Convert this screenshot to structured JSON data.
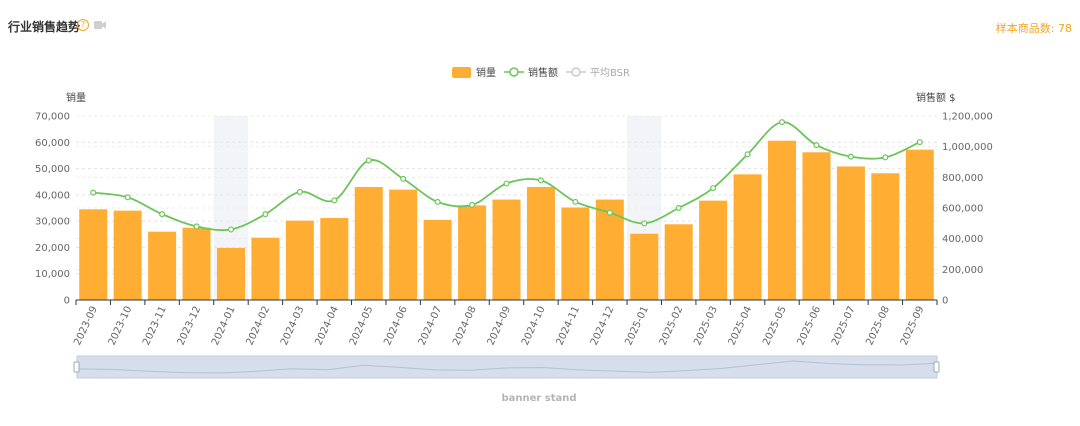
{
  "header": {
    "title": "行业销售趋势",
    "help_symbol": "?",
    "sample_label": "样本商品数: 78"
  },
  "footer": {
    "label": "banner stand"
  },
  "colors": {
    "bar": "#FFAD33",
    "line": "#6CC55A",
    "bsr": "#CCCCCC",
    "highlight": "#F2F4F8",
    "accent": "#F5A623",
    "slider": "#D5DEEA"
  },
  "chart_data": {
    "type": "bar",
    "title": "行业销售趋势",
    "legend": [
      {
        "name": "销量",
        "kind": "bar",
        "active": true
      },
      {
        "name": "销售额",
        "kind": "line",
        "active": true
      },
      {
        "name": "平均BSR",
        "kind": "line",
        "active": false
      }
    ],
    "legend_position": "top-center",
    "categories": [
      "2023-09",
      "2023-10",
      "2023-11",
      "2023-12",
      "2024-01",
      "2024-02",
      "2024-03",
      "2024-04",
      "2024-05",
      "2024-06",
      "2024-07",
      "2024-08",
      "2024-09",
      "2024-10",
      "2024-11",
      "2024-12",
      "2025-01",
      "2025-02",
      "2025-03",
      "2025-04",
      "2025-05",
      "2025-06",
      "2025-07",
      "2025-08",
      "2025-09"
    ],
    "highlight_categories": [
      "2024-01",
      "2025-01"
    ],
    "series": [
      {
        "name": "销量",
        "axis": "left",
        "type": "bar",
        "values": [
          34500,
          34000,
          26000,
          27500,
          19800,
          23700,
          30200,
          31200,
          43000,
          42000,
          30500,
          36000,
          38200,
          43000,
          35200,
          38200,
          25200,
          28800,
          37800,
          47800,
          60600,
          56200,
          50800,
          48200,
          57200
        ]
      },
      {
        "name": "销售额",
        "axis": "right",
        "type": "line",
        "values": [
          700000,
          670000,
          560000,
          480000,
          460000,
          560000,
          705000,
          650000,
          910000,
          790000,
          640000,
          620000,
          760000,
          780000,
          640000,
          570000,
          500000,
          600000,
          730000,
          950000,
          1160000,
          1010000,
          935000,
          930000,
          1030000
        ]
      }
    ],
    "y_left": {
      "label": "销量",
      "min": 0,
      "max": 70000,
      "ticks": [
        "0",
        "10,000",
        "20,000",
        "30,000",
        "40,000",
        "50,000",
        "60,000",
        "70,000"
      ]
    },
    "y_right": {
      "label": "销售额 $",
      "min": 0,
      "max": 1200000,
      "ticks": [
        "0",
        "200,000",
        "400,000",
        "600,000",
        "800,000",
        "1,000,000",
        "1,200,000"
      ]
    },
    "grid": true,
    "zoom_slider": true
  }
}
